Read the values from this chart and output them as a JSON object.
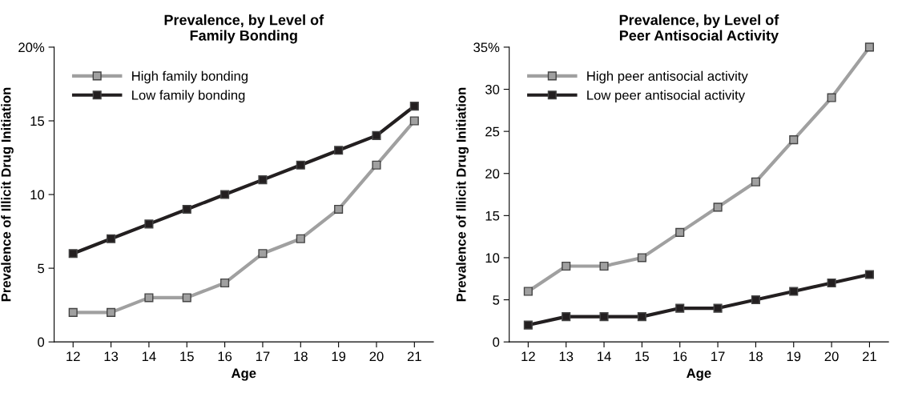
{
  "chart_data": [
    {
      "type": "line",
      "title": "Prevalence, by Level of\nFamily Bonding",
      "xlabel": "Age",
      "ylabel": "Prevalence of Illicit Drug Initiation",
      "x": [
        12,
        13,
        14,
        15,
        16,
        17,
        18,
        19,
        20,
        21
      ],
      "series": [
        {
          "name": "High family bonding",
          "color": "#a0a0a0",
          "values": [
            2,
            2,
            3,
            3,
            4,
            6,
            7,
            9,
            12,
            15
          ]
        },
        {
          "name": "Low family bonding",
          "color": "#231f20",
          "values": [
            6,
            7,
            8,
            9,
            10,
            11,
            12,
            13,
            14,
            16
          ]
        }
      ],
      "xlim": [
        11.5,
        21.5
      ],
      "xticks": [
        12,
        13,
        14,
        15,
        16,
        17,
        18,
        19,
        20,
        21
      ],
      "ylim": [
        0,
        20
      ],
      "yticks": [
        0,
        5,
        10,
        15,
        {
          "value": 20,
          "label": "20%"
        }
      ],
      "grid": false,
      "legend": "top left",
      "marker": "square",
      "line_style": "solid"
    },
    {
      "type": "line",
      "title": "Prevalence, by Level of\nPeer Antisocial Activity",
      "xlabel": "Age",
      "ylabel": "Prevalence of Illicit Drug Initiation",
      "x": [
        12,
        13,
        14,
        15,
        16,
        17,
        18,
        19,
        20,
        21
      ],
      "series": [
        {
          "name": "High peer antisocial activity",
          "color": "#a0a0a0",
          "values": [
            6,
            9,
            9,
            10,
            13,
            16,
            19,
            24,
            29,
            35
          ]
        },
        {
          "name": "Low peer antisocial activity",
          "color": "#231f20",
          "values": [
            2,
            3,
            3,
            3,
            4,
            4,
            5,
            6,
            7,
            8
          ]
        }
      ],
      "xlim": [
        11.5,
        21.5
      ],
      "xticks": [
        12,
        13,
        14,
        15,
        16,
        17,
        18,
        19,
        20,
        21
      ],
      "ylim": [
        0,
        35
      ],
      "yticks": [
        0,
        5,
        10,
        15,
        20,
        25,
        30,
        {
          "value": 35,
          "label": "35%"
        }
      ],
      "grid": false,
      "legend": "top left",
      "marker": "square",
      "line_style": "solid"
    }
  ]
}
